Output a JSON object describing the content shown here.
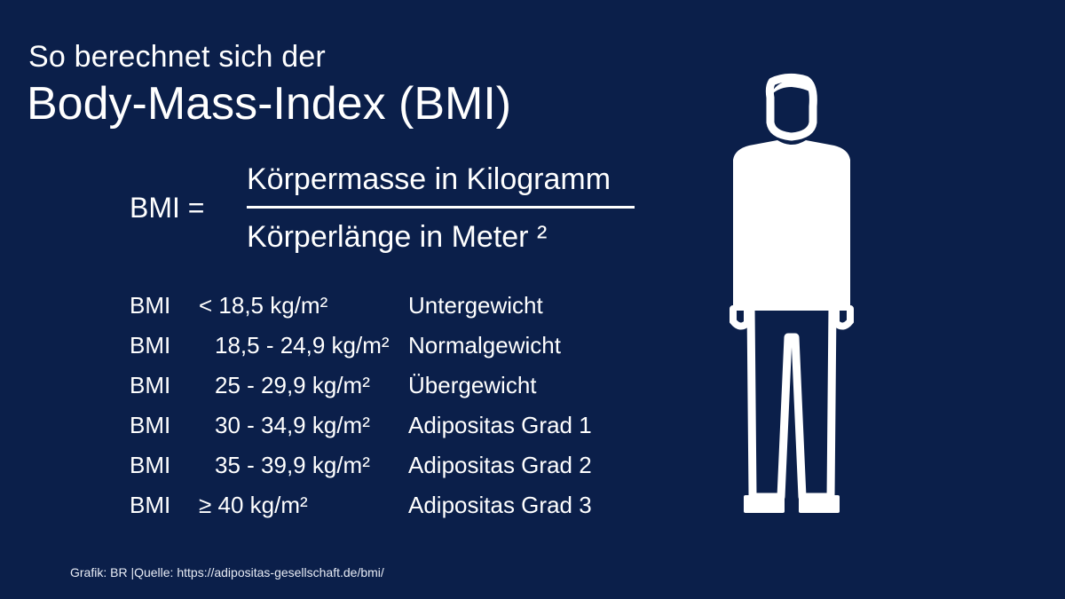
{
  "header": {
    "line1": "So berechnet sich der",
    "line2": "Body-Mass-Index (BMI)"
  },
  "formula": {
    "lhs": "BMI =",
    "numerator": "Körpermasse in Kilogramm",
    "denominator": "Körperlänge in Meter ²"
  },
  "table": {
    "rows": [
      {
        "label": "BMI",
        "range": "< 18,5 kg/m²",
        "category": "Untergewicht"
      },
      {
        "label": "BMI",
        "range": "18,5 - 24,9 kg/m²",
        "category": "Normalgewicht"
      },
      {
        "label": "BMI",
        "range": "25 - 29,9 kg/m²",
        "category": "Übergewicht"
      },
      {
        "label": "BMI",
        "range": "30 - 34,9  kg/m²",
        "category": "Adipositas Grad 1"
      },
      {
        "label": "BMI",
        "range": "35 - 39,9 kg/m²",
        "category": "Adipositas Grad 2"
      },
      {
        "label": "BMI",
        "range": "≥ 40  kg/m²",
        "category": "Adipositas Grad 3"
      }
    ]
  },
  "footer": {
    "credit": "Grafik: BR |Quelle:  https://adipositas-gesellschaft.de/bmi/"
  },
  "illustration": {
    "icon": "person-silhouette-icon"
  },
  "colors": {
    "background": "#0b1f4a",
    "foreground": "#ffffff"
  }
}
